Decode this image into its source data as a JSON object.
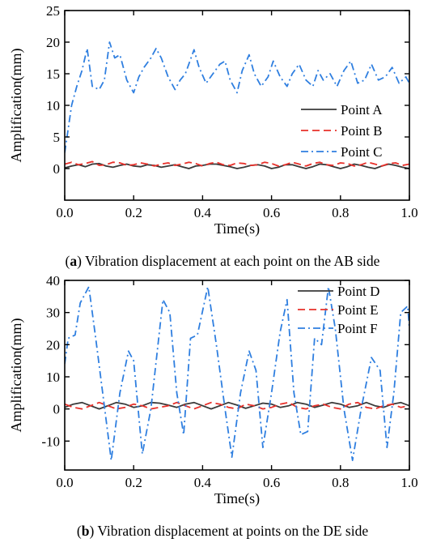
{
  "chart_data": [
    {
      "type": "line",
      "caption_letter": "a",
      "caption_text": "Vibration displacement at each point on the AB side",
      "xlabel": "Time(s)",
      "ylabel": "Amplification(mm)",
      "xlim": [
        0.0,
        1.0
      ],
      "ylim": [
        -5,
        25
      ],
      "xticks": [
        0.0,
        0.2,
        0.4,
        0.6,
        0.8,
        1.0
      ],
      "xtick_labels": [
        "0.0",
        "0.2",
        "0.4",
        "0.6",
        "0.8",
        "1.0"
      ],
      "yticks": [
        0,
        5,
        10,
        15,
        20,
        25
      ],
      "ytick_labels": [
        "0",
        "5",
        "10",
        "15",
        "20",
        "25"
      ],
      "grid": false,
      "legend_position": "right",
      "series": [
        {
          "name": "Point A",
          "color": "#3a3a3a",
          "dash": "solid",
          "x": [
            0.0,
            0.02,
            0.04,
            0.06,
            0.08,
            0.1,
            0.12,
            0.14,
            0.16,
            0.18,
            0.2,
            0.22,
            0.24,
            0.26,
            0.28,
            0.3,
            0.32,
            0.34,
            0.36,
            0.38,
            0.4,
            0.42,
            0.44,
            0.46,
            0.48,
            0.5,
            0.52,
            0.54,
            0.56,
            0.58,
            0.6,
            0.62,
            0.64,
            0.66,
            0.68,
            0.7,
            0.72,
            0.74,
            0.76,
            0.78,
            0.8,
            0.82,
            0.84,
            0.86,
            0.88,
            0.9,
            0.92,
            0.94,
            0.96,
            0.98,
            1.0
          ],
          "y": [
            0.1,
            0.4,
            0.6,
            0.3,
            0.7,
            0.8,
            0.4,
            0.2,
            0.5,
            0.7,
            0.4,
            0.3,
            0.6,
            0.5,
            0.2,
            0.4,
            0.6,
            0.3,
            0.0,
            0.4,
            0.5,
            0.7,
            0.7,
            0.5,
            0.3,
            0.0,
            0.2,
            0.5,
            0.6,
            0.4,
            0.0,
            0.2,
            0.6,
            0.6,
            0.3,
            0.0,
            0.3,
            0.7,
            0.6,
            0.3,
            0.0,
            0.3,
            0.7,
            0.5,
            0.2,
            0.0,
            0.4,
            0.7,
            0.5,
            0.2,
            0.0
          ]
        },
        {
          "name": "Point B",
          "color": "#e8302a",
          "dash": "dash",
          "x": [
            0.0,
            0.02,
            0.04,
            0.06,
            0.08,
            0.1,
            0.12,
            0.14,
            0.16,
            0.18,
            0.2,
            0.22,
            0.24,
            0.26,
            0.28,
            0.3,
            0.32,
            0.34,
            0.36,
            0.38,
            0.4,
            0.42,
            0.44,
            0.46,
            0.48,
            0.5,
            0.52,
            0.54,
            0.56,
            0.58,
            0.6,
            0.62,
            0.64,
            0.66,
            0.68,
            0.7,
            0.72,
            0.74,
            0.76,
            0.78,
            0.8,
            0.82,
            0.84,
            0.86,
            0.88,
            0.9,
            0.92,
            0.94,
            0.96,
            0.98,
            1.0
          ],
          "y": [
            0.7,
            1.0,
            0.6,
            0.8,
            1.1,
            0.5,
            0.6,
            1.0,
            0.9,
            0.5,
            0.6,
            0.9,
            0.7,
            0.4,
            0.7,
            0.9,
            0.5,
            0.7,
            1.0,
            0.8,
            0.4,
            0.8,
            1.0,
            0.6,
            0.5,
            0.9,
            0.8,
            0.5,
            0.6,
            1.0,
            0.8,
            0.4,
            0.6,
            1.0,
            0.7,
            0.4,
            0.8,
            1.0,
            0.6,
            0.5,
            0.9,
            0.8,
            0.4,
            0.6,
            1.0,
            0.7,
            0.4,
            0.8,
            0.9,
            0.5,
            0.7
          ]
        },
        {
          "name": "Point C",
          "color": "#2f7fe0",
          "dash": "dashdot",
          "x": [
            0.0,
            0.02,
            0.035,
            0.05,
            0.065,
            0.08,
            0.1,
            0.115,
            0.13,
            0.145,
            0.16,
            0.18,
            0.2,
            0.215,
            0.23,
            0.25,
            0.265,
            0.28,
            0.3,
            0.32,
            0.335,
            0.35,
            0.375,
            0.39,
            0.41,
            0.43,
            0.45,
            0.465,
            0.48,
            0.5,
            0.515,
            0.535,
            0.55,
            0.57,
            0.59,
            0.605,
            0.625,
            0.645,
            0.66,
            0.68,
            0.7,
            0.72,
            0.735,
            0.75,
            0.77,
            0.79,
            0.81,
            0.83,
            0.85,
            0.87,
            0.89,
            0.91,
            0.93,
            0.95,
            0.97,
            0.99,
            1.0
          ],
          "y": [
            2.5,
            10.0,
            13.0,
            15.5,
            19.0,
            13.0,
            12.5,
            14.0,
            20.0,
            17.5,
            18.0,
            14.0,
            12.0,
            14.5,
            16.0,
            17.5,
            19.0,
            17.5,
            14.5,
            12.5,
            14.0,
            15.0,
            18.8,
            16.0,
            13.5,
            15.0,
            16.5,
            17.0,
            14.0,
            12.0,
            15.5,
            18.0,
            15.0,
            13.0,
            14.5,
            17.0,
            14.5,
            13.0,
            15.0,
            16.5,
            14.0,
            13.0,
            15.5,
            14.0,
            15.0,
            13.0,
            15.5,
            17.0,
            13.5,
            14.0,
            16.5,
            14.0,
            14.5,
            16.0,
            13.5,
            14.5,
            13.5
          ]
        }
      ]
    },
    {
      "type": "line",
      "caption_letter": "b",
      "caption_text": "Vibration displacement at points on the DE side",
      "xlabel": "Time(s)",
      "ylabel": "Amplification(mm)",
      "xlim": [
        0.0,
        1.0
      ],
      "ylim": [
        -19,
        40
      ],
      "xticks": [
        0.0,
        0.2,
        0.4,
        0.6,
        0.8,
        1.0
      ],
      "xtick_labels": [
        "0.0",
        "0.2",
        "0.4",
        "0.6",
        "0.8",
        "1.0"
      ],
      "yticks": [
        -10,
        0,
        10,
        20,
        30,
        40
      ],
      "ytick_labels": [
        "-10",
        "0",
        "10",
        "20",
        "30",
        "40"
      ],
      "grid": false,
      "legend_position": "top-right",
      "series": [
        {
          "name": "Point D",
          "color": "#3a3a3a",
          "dash": "solid",
          "x": [
            0.0,
            0.025,
            0.05,
            0.075,
            0.1,
            0.125,
            0.15,
            0.175,
            0.2,
            0.225,
            0.25,
            0.275,
            0.3,
            0.325,
            0.35,
            0.375,
            0.4,
            0.425,
            0.45,
            0.475,
            0.5,
            0.525,
            0.55,
            0.575,
            0.6,
            0.625,
            0.65,
            0.675,
            0.7,
            0.725,
            0.75,
            0.775,
            0.8,
            0.825,
            0.85,
            0.875,
            0.9,
            0.925,
            0.95,
            0.975,
            1.0
          ],
          "y": [
            0.5,
            1.5,
            2.0,
            1.0,
            0.0,
            1.0,
            2.0,
            1.5,
            0.5,
            1.0,
            2.0,
            1.8,
            1.2,
            0.5,
            1.5,
            2.0,
            1.0,
            0.0,
            1.0,
            2.0,
            1.2,
            0.2,
            1.0,
            1.8,
            1.5,
            0.5,
            1.0,
            2.0,
            1.5,
            0.5,
            1.2,
            2.0,
            1.5,
            0.5,
            1.0,
            2.0,
            1.0,
            0.5,
            1.5,
            2.0,
            1.0
          ]
        },
        {
          "name": "Point E",
          "color": "#e8302a",
          "dash": "dash",
          "x": [
            0.0,
            0.025,
            0.05,
            0.075,
            0.1,
            0.125,
            0.15,
            0.175,
            0.2,
            0.225,
            0.25,
            0.275,
            0.3,
            0.325,
            0.35,
            0.375,
            0.4,
            0.425,
            0.45,
            0.475,
            0.5,
            0.525,
            0.55,
            0.575,
            0.6,
            0.625,
            0.65,
            0.675,
            0.7,
            0.725,
            0.75,
            0.775,
            0.8,
            0.825,
            0.85,
            0.875,
            0.9,
            0.925,
            0.95,
            0.975,
            1.0
          ],
          "y": [
            1.5,
            0.5,
            0.0,
            1.0,
            2.0,
            1.0,
            0.0,
            0.5,
            1.5,
            1.0,
            0.0,
            0.5,
            1.0,
            2.0,
            1.0,
            0.0,
            1.0,
            2.0,
            1.5,
            0.5,
            0.0,
            1.5,
            1.0,
            0.0,
            0.5,
            1.5,
            2.0,
            0.5,
            0.0,
            1.0,
            1.5,
            0.5,
            0.0,
            1.5,
            2.0,
            0.5,
            0.0,
            1.0,
            1.5,
            0.5,
            1.0
          ]
        },
        {
          "name": "Point F",
          "color": "#2f7fe0",
          "dash": "dashdot",
          "x": [
            0.0,
            0.01,
            0.03,
            0.045,
            0.07,
            0.09,
            0.11,
            0.135,
            0.16,
            0.185,
            0.2,
            0.225,
            0.25,
            0.285,
            0.305,
            0.325,
            0.345,
            0.365,
            0.385,
            0.415,
            0.44,
            0.465,
            0.485,
            0.51,
            0.535,
            0.555,
            0.575,
            0.6,
            0.625,
            0.645,
            0.665,
            0.685,
            0.705,
            0.725,
            0.745,
            0.765,
            0.785,
            0.81,
            0.835,
            0.86,
            0.89,
            0.915,
            0.935,
            0.955,
            0.975,
            0.995,
            1.0
          ],
          "y": [
            14.0,
            22.0,
            23.0,
            33.0,
            38.0,
            22.0,
            5.0,
            -16.0,
            5.0,
            18.0,
            15.0,
            -14.0,
            0.0,
            34.0,
            30.0,
            5.0,
            -8.0,
            22.0,
            23.0,
            38.0,
            20.0,
            0.0,
            -15.0,
            5.0,
            18.0,
            12.0,
            -12.0,
            5.0,
            24.0,
            34.0,
            5.0,
            -8.0,
            -7.0,
            22.0,
            20.0,
            38.0,
            25.0,
            0.0,
            -16.0,
            0.0,
            16.0,
            12.0,
            -12.0,
            5.0,
            30.0,
            32.0,
            25.0
          ]
        }
      ]
    }
  ]
}
